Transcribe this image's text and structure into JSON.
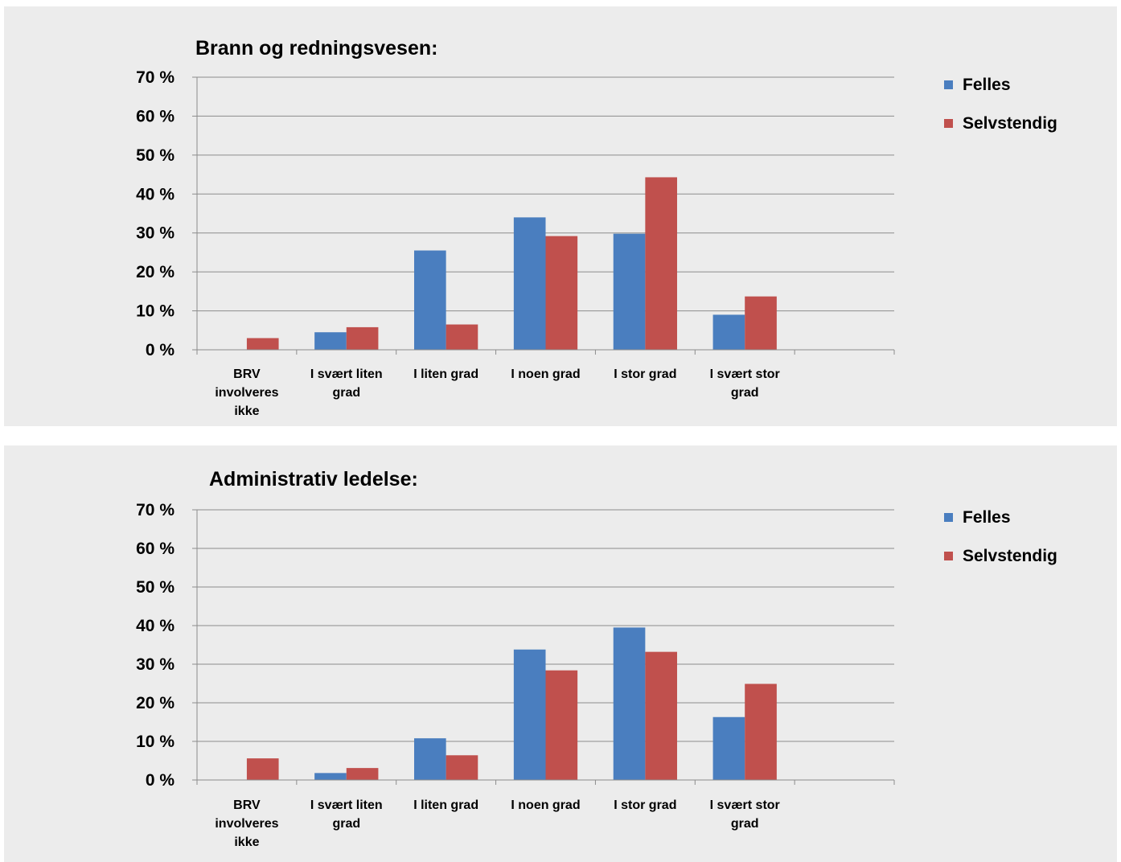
{
  "colors": {
    "felles": "#4a7ebf",
    "selvstendig": "#c0504d",
    "grid": "#8c8c8c",
    "panel_bg": "#ececec"
  },
  "chart_data": [
    {
      "type": "bar",
      "title": "Brann og redningsvesen:",
      "categories": [
        "BRV involveres ikke",
        "I svært liten grad",
        "I  liten grad",
        "I noen grad",
        "I stor grad",
        "I svært stor grad",
        ""
      ],
      "category_lines": [
        [
          "BRV",
          "involveres",
          "ikke"
        ],
        [
          "I svært liten",
          "grad"
        ],
        [
          "I  liten grad"
        ],
        [
          "I noen grad"
        ],
        [
          "I stor grad"
        ],
        [
          "I svært stor",
          "grad"
        ],
        []
      ],
      "series": [
        {
          "name": "Felles",
          "values": [
            0,
            4.5,
            25.5,
            34,
            29.8,
            9,
            null
          ]
        },
        {
          "name": "Selvstendig",
          "values": [
            3,
            5.8,
            6.5,
            29.2,
            44.3,
            13.7,
            null
          ]
        }
      ],
      "y_ticks": [
        "0 %",
        "10 %",
        "20 %",
        "30 %",
        "40 %",
        "50 %",
        "60 %",
        "70 %"
      ],
      "ylim": [
        0,
        70
      ],
      "grid": true,
      "legend": "top-right"
    },
    {
      "type": "bar",
      "title": "Administrativ ledelse:",
      "categories": [
        "BRV involveres ikke",
        "I svært liten grad",
        "I  liten grad",
        "I noen grad",
        "I stor grad",
        "I svært stor grad",
        ""
      ],
      "category_lines": [
        [
          "BRV",
          "involveres",
          "ikke"
        ],
        [
          "I svært liten",
          "grad"
        ],
        [
          "I  liten grad"
        ],
        [
          "I noen grad"
        ],
        [
          "I stor grad"
        ],
        [
          "I svært stor",
          "grad"
        ],
        []
      ],
      "series": [
        {
          "name": "Felles",
          "values": [
            0,
            1.8,
            10.8,
            33.8,
            39.5,
            16.3,
            null
          ]
        },
        {
          "name": "Selvstendig",
          "values": [
            5.6,
            3.1,
            6.4,
            28.4,
            33.2,
            24.9,
            null
          ]
        }
      ],
      "y_ticks": [
        "0 %",
        "10 %",
        "20 %",
        "30 %",
        "40 %",
        "50 %",
        "60 %",
        "70 %"
      ],
      "ylim": [
        0,
        70
      ],
      "grid": true,
      "legend": "top-right"
    }
  ]
}
